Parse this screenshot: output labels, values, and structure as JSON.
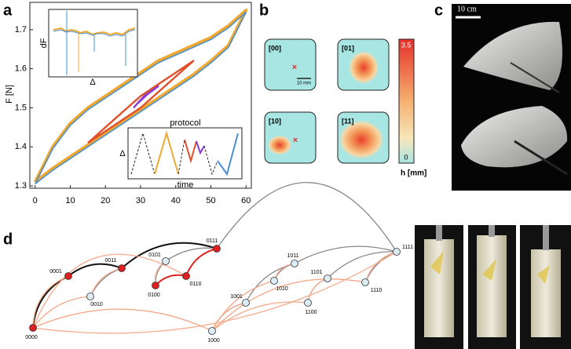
{
  "panels": {
    "a": "a",
    "b": "b",
    "c": "c",
    "d": "d"
  },
  "chart_data": {
    "type": "line",
    "ylabel": "F [N]",
    "xlim": [
      -1.5,
      61.5
    ],
    "ylim": [
      1.294,
      1.77
    ],
    "xticks": [
      0,
      10,
      20,
      30,
      40,
      50,
      60
    ],
    "yticks": [
      1.3,
      1.4,
      1.5,
      1.6,
      1.7
    ],
    "series": [
      {
        "color": "#f0a830",
        "x": [
          0,
          5,
          10,
          15,
          20,
          25,
          30,
          35,
          40,
          45,
          50,
          55,
          60,
          55,
          50,
          45,
          40,
          35,
          30,
          25,
          20,
          15,
          10,
          5,
          0
        ],
        "values": [
          1.31,
          1.4,
          1.46,
          1.5,
          1.53,
          1.56,
          1.59,
          1.62,
          1.64,
          1.66,
          1.68,
          1.71,
          1.75,
          1.66,
          1.62,
          1.585,
          1.555,
          1.525,
          1.495,
          1.465,
          1.435,
          1.405,
          1.375,
          1.345,
          1.31
        ]
      },
      {
        "color": "#4a90d0",
        "x": [
          0,
          5,
          10,
          15,
          20,
          25,
          30,
          35,
          40,
          45,
          50,
          55,
          60,
          55,
          50,
          45,
          40,
          35,
          30,
          25,
          20,
          15,
          10,
          5,
          0
        ],
        "values": [
          1.305,
          1.395,
          1.455,
          1.495,
          1.525,
          1.555,
          1.585,
          1.615,
          1.635,
          1.655,
          1.675,
          1.705,
          1.745,
          1.655,
          1.615,
          1.58,
          1.55,
          1.52,
          1.49,
          1.46,
          1.43,
          1.4,
          1.37,
          1.34,
          1.305
        ]
      },
      {
        "color": "#e0502a",
        "x": [
          15,
          20,
          25,
          30,
          35,
          40,
          45,
          40,
          35,
          30,
          25,
          20,
          15
        ],
        "values": [
          1.41,
          1.45,
          1.49,
          1.53,
          1.56,
          1.59,
          1.62,
          1.58,
          1.54,
          1.5,
          1.47,
          1.44,
          1.41
        ]
      },
      {
        "color": "#8a3ad0",
        "x": [
          28,
          31,
          35,
          32,
          29
        ],
        "values": [
          1.5,
          1.53,
          1.555,
          1.535,
          1.51
        ]
      }
    ]
  },
  "inset": {
    "ylabel": "dF",
    "xlabel": "Δ"
  },
  "protocol": {
    "title": "protocol",
    "ylabel": "Δ",
    "xlabel": "time"
  },
  "maps": {
    "labels": [
      "[00]",
      "[01]",
      "[10]",
      "[11]"
    ],
    "scale": "10 mm",
    "colorbar": {
      "ticks": [
        3.5,
        0
      ],
      "label": "h [mm]"
    }
  },
  "photo": {
    "scale": "10 cm"
  },
  "graph": {
    "nodes": [
      {
        "label": "0000"
      },
      {
        "label": "0001"
      },
      {
        "label": "0010"
      },
      {
        "label": "0011"
      },
      {
        "label": "0100"
      },
      {
        "label": "0101"
      },
      {
        "label": "0110"
      },
      {
        "label": "0111"
      },
      {
        "label": "1000"
      },
      {
        "label": "1001"
      },
      {
        "label": "1010"
      },
      {
        "label": "1011"
      },
      {
        "label": "1100"
      },
      {
        "label": "1101"
      },
      {
        "label": "1110"
      },
      {
        "label": "1111"
      }
    ]
  }
}
